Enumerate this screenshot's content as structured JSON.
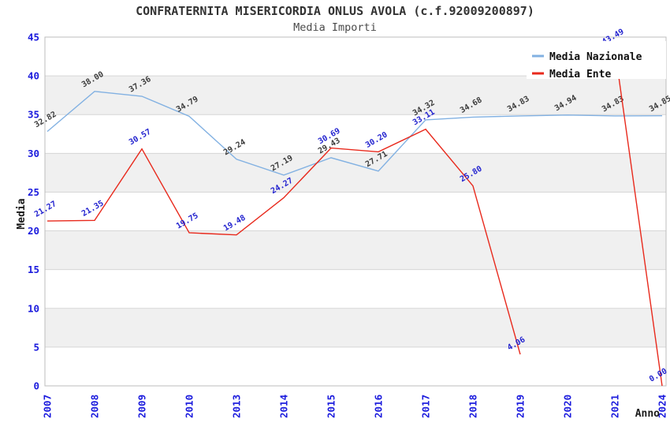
{
  "chart_data": {
    "type": "line",
    "title": "CONFRATERNITA MISERICORDIA ONLUS AVOLA (c.f.92009200897)",
    "subtitle": "Media Importi",
    "xlabel": "Anno",
    "ylabel": "Media",
    "categories": [
      "2007",
      "2008",
      "2009",
      "2010",
      "2013",
      "2014",
      "2015",
      "2016",
      "2017",
      "2018",
      "2019",
      "2020",
      "2021",
      "2024"
    ],
    "series": [
      {
        "name": "Media Nazionale",
        "color": "#82b1e2",
        "label_color": "#3c3c3c",
        "values": [
          32.82,
          38.0,
          37.36,
          34.79,
          29.24,
          27.19,
          29.43,
          27.71,
          34.32,
          34.68,
          34.83,
          34.94,
          34.83,
          34.85
        ]
      },
      {
        "name": "Media Ente",
        "color": "#e8291c",
        "label_color": "#2323cf",
        "values": [
          21.27,
          21.35,
          30.57,
          19.75,
          19.48,
          24.27,
          30.69,
          30.2,
          33.11,
          25.8,
          4.06,
          null,
          43.49,
          0.0
        ]
      }
    ],
    "ylim": [
      0,
      45
    ],
    "ytick_interval": 5,
    "tick_color": "#1b1bdd",
    "grid": "horizontal",
    "gridline_color": "#d6d6d6",
    "band_fill": "#f0f0f0",
    "plot_border_color": "#bdbdbd",
    "legend_position": "top-right",
    "data_label_rotation": -30,
    "data_label_format": "0.00"
  }
}
